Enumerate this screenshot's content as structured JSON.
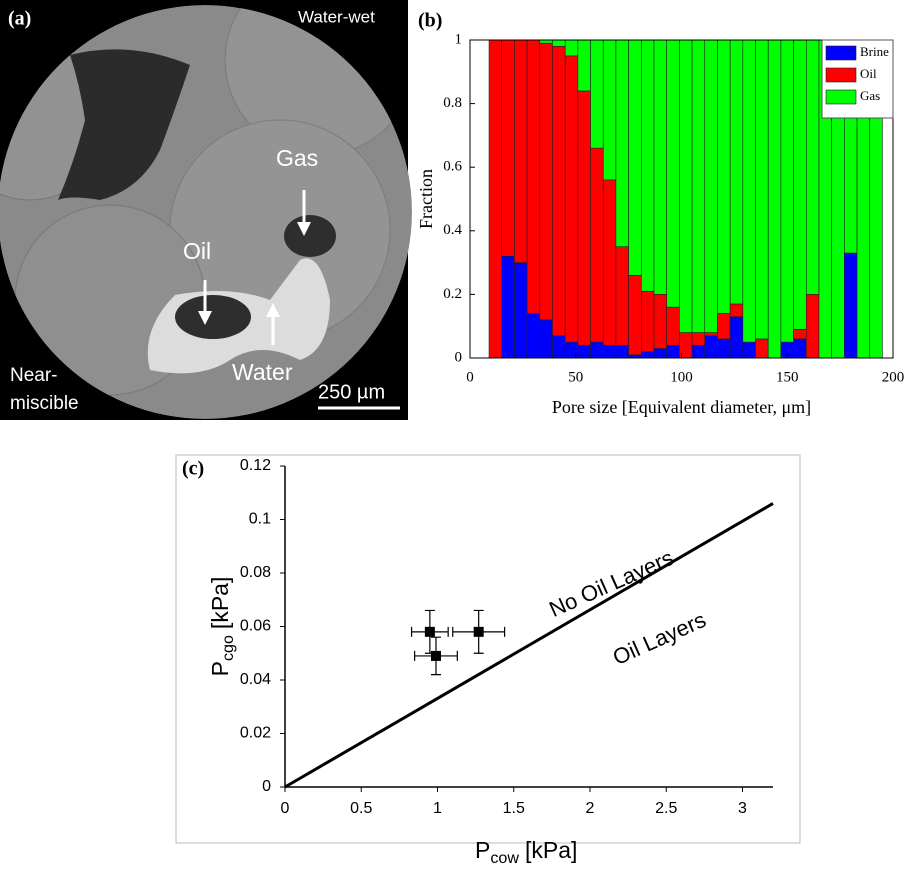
{
  "image_panel": {
    "label": "(a)",
    "corner_labels": [
      "Water-wet",
      "Near-",
      "miscible"
    ],
    "phase_labels": [
      "Gas",
      "Oil",
      "Water"
    ],
    "scale_bar": "250 µm"
  },
  "chart_data": [
    {
      "type": "stacked_bar",
      "label": "(b)",
      "xlabel": "Pore size [Equivalent diameter, μm]",
      "ylabel": "Fraction",
      "x": [
        12,
        18,
        24,
        30,
        36,
        42,
        48,
        54,
        60,
        66,
        72,
        78,
        84,
        90,
        96,
        102,
        108,
        114,
        120,
        126,
        132,
        138,
        144,
        150,
        156,
        162,
        168,
        174,
        180,
        186,
        192
      ],
      "series": [
        {
          "name": "Brine",
          "color": "#0000ff",
          "values": [
            0,
            0.32,
            0.3,
            0.14,
            0.12,
            0.07,
            0.05,
            0.04,
            0.05,
            0.04,
            0.04,
            0.01,
            0.02,
            0.03,
            0.04,
            0,
            0.04,
            0.07,
            0.06,
            0.13,
            0.05,
            0,
            0,
            0.05,
            0.06,
            0,
            0,
            0,
            0.33,
            0,
            0
          ]
        },
        {
          "name": "Oil",
          "color": "#ff0000",
          "values": [
            1,
            0.68,
            0.7,
            0.86,
            0.87,
            0.91,
            0.9,
            0.8,
            0.61,
            0.52,
            0.31,
            0.25,
            0.19,
            0.17,
            0.12,
            0.08,
            0.04,
            0.01,
            0.08,
            0.04,
            0,
            0.06,
            0,
            0,
            0.03,
            0.2,
            0,
            0,
            0,
            0,
            0
          ]
        },
        {
          "name": "Gas",
          "color": "#00ff00",
          "values": [
            0,
            0,
            0,
            0,
            0.01,
            0.02,
            0.05,
            0.16,
            0.34,
            0.44,
            0.65,
            0.74,
            0.79,
            0.8,
            0.84,
            0.92,
            0.92,
            0.92,
            0.86,
            0.83,
            0.95,
            0.94,
            1,
            0.95,
            0.91,
            0.8,
            1,
            1,
            0.67,
            1,
            1
          ]
        }
      ],
      "xlim": [
        0,
        200
      ],
      "xticks": [
        0,
        50,
        100,
        150,
        200
      ],
      "ylim": [
        0,
        1
      ],
      "yticks": [
        0,
        0.2,
        0.4,
        0.6,
        0.8,
        1
      ],
      "legend": "upper right"
    },
    {
      "type": "scatter",
      "label": "(c)",
      "xlabel": {
        "main": "P",
        "sub": "cow",
        "unit": "[kPa]"
      },
      "ylabel": {
        "main": "P",
        "sub": "cgo",
        "unit": "[kPa]"
      },
      "xlim": [
        0,
        3.2
      ],
      "xticks": [
        0,
        0.5,
        1,
        1.5,
        2,
        2.5,
        3
      ],
      "ylim": [
        0,
        0.12
      ],
      "yticks": [
        0,
        0.02,
        0.04,
        0.06,
        0.08,
        0.1,
        0.12
      ],
      "series": [
        {
          "type": "scatter",
          "color": "#000000",
          "x": [
            0.95,
            0.99,
            1.27
          ],
          "values": [
            0.058,
            0.049,
            0.058
          ],
          "xerr": [
            0.12,
            0.14,
            0.17
          ],
          "yerr": [
            0.008,
            0.007,
            0.008
          ]
        },
        {
          "type": "line",
          "color": "#000000",
          "x": [
            0,
            3.2
          ],
          "values": [
            0,
            0.106
          ]
        }
      ],
      "annotations": [
        "No Oil Layers",
        "Oil Layers"
      ]
    }
  ]
}
